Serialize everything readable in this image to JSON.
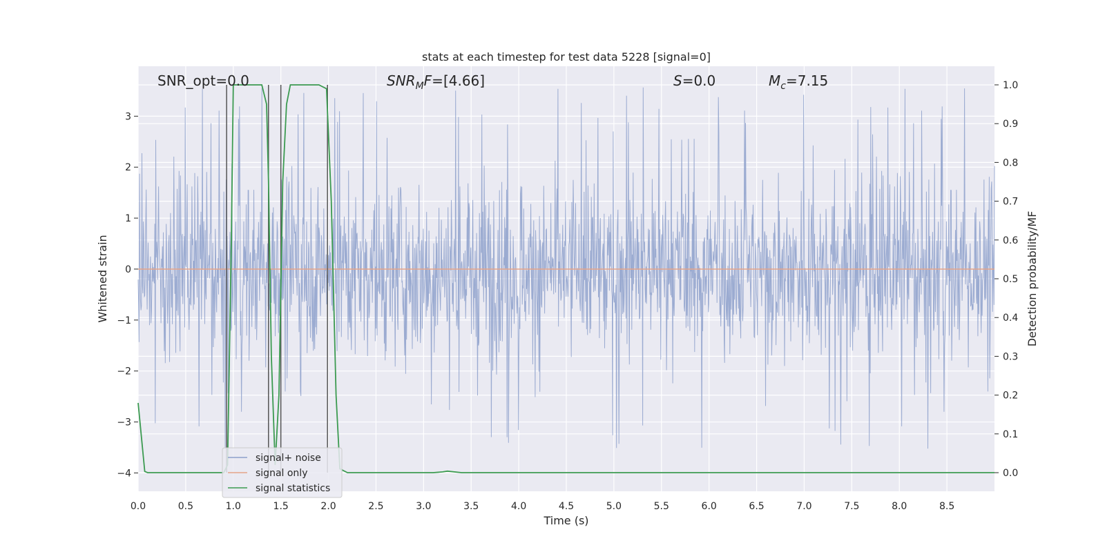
{
  "chart_data": {
    "type": "line",
    "title": "stats at each timestep for test data 5228 [signal=0]",
    "xlabel": "Time (s)",
    "ylabel": "Whitened strain",
    "ylabel_right": "Detection probability/MF",
    "xlim": [
      0.0,
      9.0
    ],
    "ylim": [
      -4.36,
      3.98
    ],
    "ylim_right": [
      -0.048,
      1.048
    ],
    "x_ticks": [
      "0.0",
      "0.5",
      "1.0",
      "1.5",
      "2.0",
      "2.5",
      "3.0",
      "3.5",
      "4.0",
      "4.5",
      "5.0",
      "5.5",
      "6.0",
      "6.5",
      "7.0",
      "7.5",
      "8.0",
      "8.5"
    ],
    "y_ticks": [
      "3",
      "2",
      "1",
      "0",
      "−1",
      "−2",
      "−3",
      "−4"
    ],
    "y_right_ticks": [
      "1.0",
      "0.9",
      "0.8",
      "0.7",
      "0.6",
      "0.5",
      "0.4",
      "0.3",
      "0.2",
      "0.1",
      "0.0"
    ],
    "grid": true,
    "legend_position": "bottom-left",
    "annotations": {
      "snr_opt": "SNR_opt=0.0",
      "snr_mf": "[4.66]",
      "s": "=0.0",
      "mc": "=7.15"
    },
    "series": [
      {
        "name": "signal+ noise",
        "axis": "left",
        "color": "#8da0cb",
        "description_range": [
          -3.9,
          3.6
        ]
      },
      {
        "name": "signal only",
        "axis": "left",
        "color": "#e5a388",
        "x": [
          0.0,
          9.0
        ],
        "values": [
          0.0,
          0.0
        ]
      },
      {
        "name": "signal statistics",
        "axis": "right",
        "color": "#3b9a50",
        "x": [
          0.0,
          0.07,
          0.1,
          0.2,
          0.5,
          0.9,
          0.94,
          0.98,
          1.0,
          1.1,
          1.3,
          1.35,
          1.37,
          1.4,
          1.44,
          1.48,
          1.52,
          1.56,
          1.6,
          1.9,
          1.98,
          2.03,
          2.08,
          2.12,
          2.2,
          2.5,
          3.1,
          3.2,
          3.25,
          3.4,
          4.0,
          5.0,
          6.0,
          7.0,
          8.0,
          9.0
        ],
        "values": [
          0.18,
          0.003,
          0.0,
          0.0,
          0.0,
          0.0,
          0.02,
          0.6,
          1.0,
          1.0,
          1.0,
          0.95,
          0.75,
          0.3,
          0.02,
          0.2,
          0.75,
          0.95,
          1.0,
          1.0,
          0.99,
          0.7,
          0.2,
          0.01,
          0.0,
          0.0,
          0.0,
          0.002,
          0.004,
          0.0,
          0.0,
          0.0,
          0.0,
          0.0,
          0.0,
          0.0
        ]
      }
    ],
    "vertical_lines_x": [
      0.93,
      1.37,
      1.5,
      1.99
    ],
    "colors": {
      "plot_bg": "#eaeaf2",
      "grid": "#ffffff",
      "vline": "#555555"
    }
  }
}
